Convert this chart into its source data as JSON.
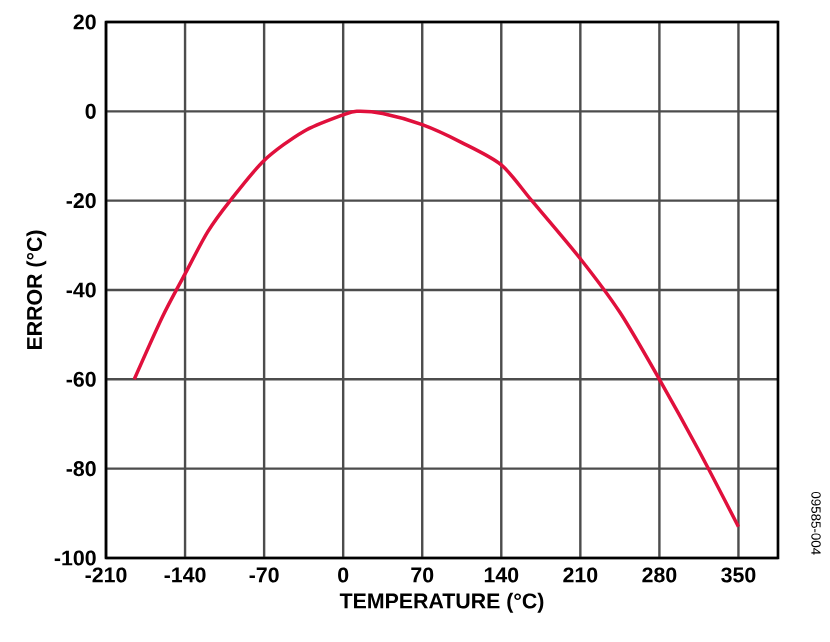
{
  "chart_data": {
    "type": "line",
    "xlabel": "TEMPERATURE (°C)",
    "ylabel": "ERROR (°C)",
    "x": [
      -185,
      -160,
      -140,
      -120,
      -100,
      -70,
      -35,
      0,
      12,
      35,
      70,
      105,
      140,
      167,
      210,
      245,
      280,
      315,
      350
    ],
    "series": [
      {
        "color": "#e0103c",
        "values": [
          -60,
          -46,
          -36.4,
          -27,
          -20,
          -11,
          -4.5,
          -0.8,
          0,
          -0.5,
          -3,
          -7,
          -12,
          -20,
          -33,
          -45,
          -60,
          -76,
          -93
        ]
      }
    ],
    "xlim": [
      -210,
      385
    ],
    "xticks": [
      -210,
      -140,
      -70,
      0,
      70,
      140,
      210,
      280,
      350
    ],
    "ylim": [
      -100,
      20
    ],
    "yticks": [
      -100,
      -80,
      -60,
      -40,
      -20,
      0,
      20
    ],
    "grid": true,
    "marker": "none",
    "line_style": "solid",
    "annotations": [
      "09585-004"
    ]
  }
}
